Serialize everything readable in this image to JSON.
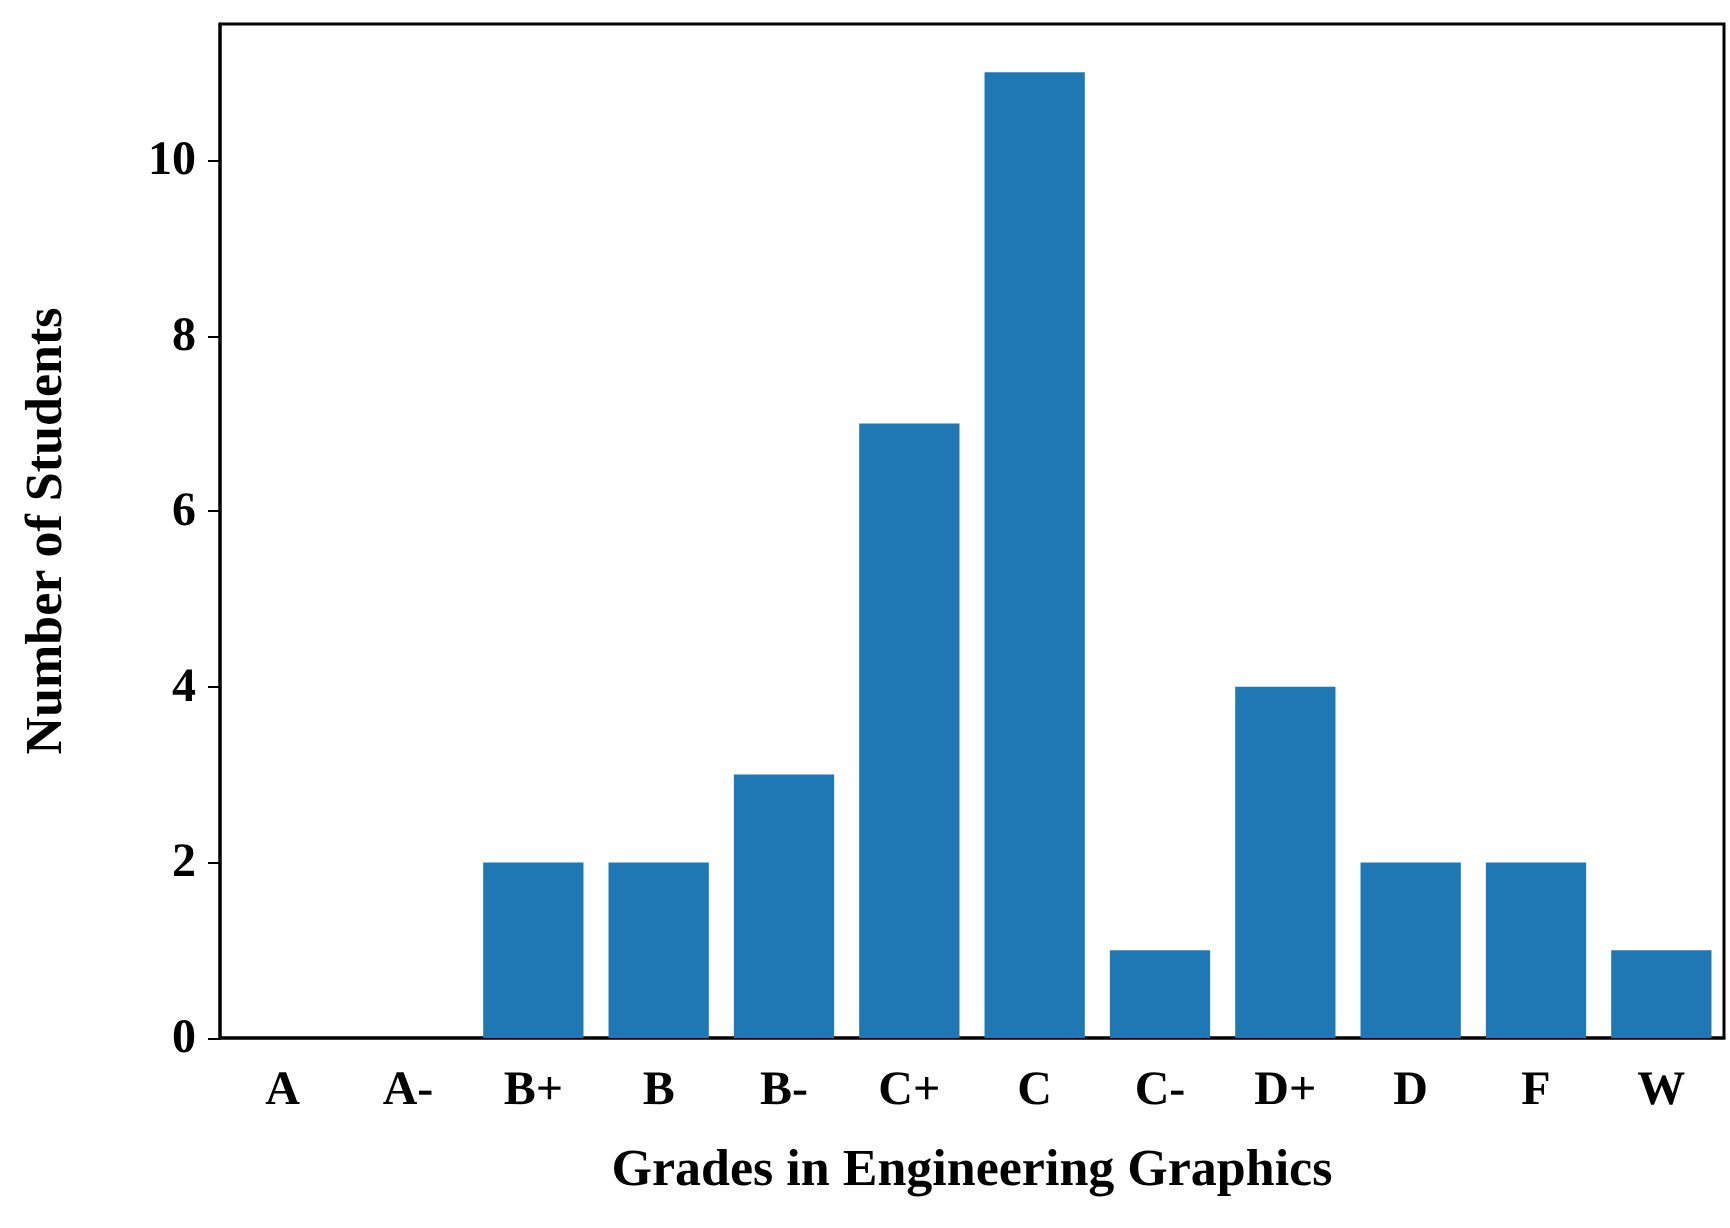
{
  "chart_data": {
    "type": "bar",
    "xlabel": "Grades in Engineering Graphics",
    "ylabel": "Number of Students",
    "categories": [
      "A",
      "A-",
      "B+",
      "B",
      "B-",
      "C+",
      "C",
      "C-",
      "D+",
      "D",
      "F",
      "W"
    ],
    "values": [
      0,
      0,
      2,
      2,
      3,
      7,
      11,
      1,
      4,
      2,
      2,
      1
    ],
    "color": "#1f77b4",
    "ylim": [
      0,
      11.55
    ],
    "yticks": [
      0,
      2,
      4,
      6,
      8,
      10
    ],
    "grid": false
  }
}
